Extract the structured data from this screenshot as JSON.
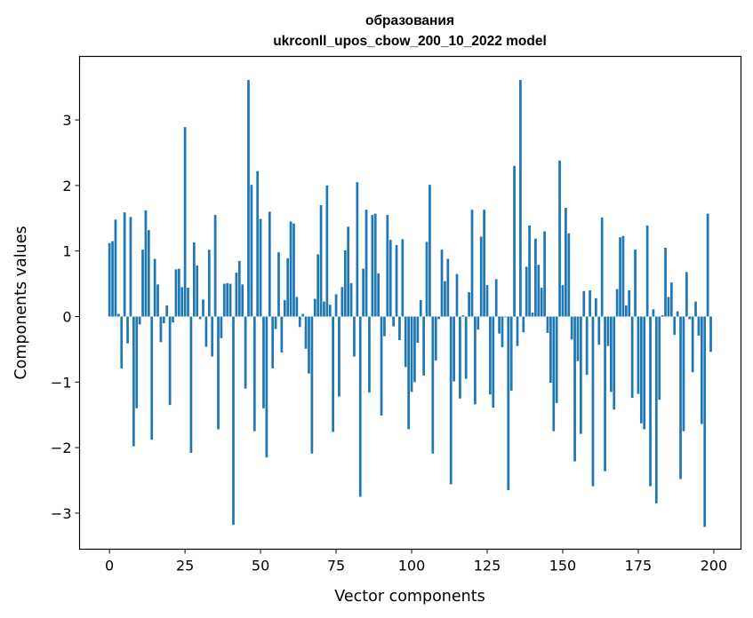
{
  "chart_data": {
    "type": "bar",
    "title_line1": "образования",
    "title_line2": "ukrconll_upos_cbow_200_10_2022 model",
    "xlabel": "Vector components",
    "ylabel": "Components values",
    "xlim": [
      -9.9,
      209
    ],
    "ylim": [
      -3.55,
      3.97
    ],
    "xticks": [
      0,
      25,
      50,
      75,
      100,
      125,
      150,
      175,
      200
    ],
    "yticks": [
      -3,
      -2,
      -1,
      0,
      1,
      2,
      3
    ],
    "bar_color": "#1f77b4",
    "grid": false,
    "values": [
      1.12,
      1.15,
      1.48,
      0.04,
      -0.79,
      1.59,
      -0.41,
      1.52,
      -1.98,
      -1.4,
      -0.12,
      1.02,
      1.62,
      1.32,
      -1.88,
      0.88,
      0.49,
      -0.39,
      -0.1,
      0.17,
      -1.35,
      -0.09,
      0.72,
      0.73,
      0.45,
      2.89,
      0.44,
      -2.08,
      1.13,
      0.78,
      -0.04,
      0.26,
      -0.46,
      1.02,
      -0.61,
      1.55,
      -1.72,
      -0.33,
      0.5,
      0.51,
      0.5,
      -3.18,
      0.67,
      0.85,
      0.49,
      -1.1,
      3.61,
      2.01,
      -1.75,
      2.22,
      1.49,
      -1.4,
      -2.15,
      1.6,
      -0.79,
      -0.19,
      0.98,
      -0.55,
      0.25,
      0.89,
      1.45,
      1.42,
      0.3,
      -0.16,
      0.04,
      -0.49,
      -0.87,
      -2.09,
      0.27,
      0.95,
      1.7,
      0.23,
      2.0,
      0.18,
      -1.76,
      0.34,
      -1.22,
      0.45,
      1.01,
      1.37,
      0.51,
      -0.61,
      2.05,
      -2.75,
      0.73,
      1.63,
      -1.16,
      1.55,
      1.57,
      0.66,
      -1.51,
      -0.3,
      1.55,
      1.17,
      -0.15,
      1.09,
      -0.36,
      1.18,
      -0.77,
      -1.72,
      -1.15,
      -1.0,
      -0.4,
      0.25,
      -0.9,
      1.14,
      2.01,
      -2.09,
      -0.67,
      -0.04,
      1.02,
      0.54,
      0.88,
      -2.56,
      -0.99,
      0.65,
      -1.25,
      0.02,
      -0.95,
      0.37,
      1.63,
      -1.34,
      -0.2,
      1.22,
      1.63,
      0.48,
      -1.19,
      -1.39,
      0.57,
      -0.26,
      -0.47,
      -0.01,
      -2.65,
      -1.13,
      2.3,
      -0.45,
      3.61,
      -0.24,
      0.76,
      1.39,
      0.06,
      1.19,
      0.79,
      0.44,
      1.3,
      -0.25,
      -1.01,
      -1.75,
      -1.32,
      2.38,
      0.48,
      1.66,
      1.27,
      -0.35,
      -2.21,
      -0.68,
      -1.79,
      0.39,
      -0.89,
      0.4,
      -2.59,
      0.28,
      -0.43,
      1.51,
      -2.36,
      -0.45,
      -1.15,
      -1.42,
      0.42,
      1.21,
      1.23,
      0.17,
      0.4,
      -1.24,
      1.02,
      -1.18,
      -1.63,
      -1.72,
      1.39,
      -2.59,
      0.11,
      -2.85,
      -1.27,
      0.02,
      1.05,
      0.3,
      0.52,
      -0.28,
      0.08,
      -2.48,
      -1.75,
      0.68,
      -0.04,
      -0.85,
      0.23,
      -0.29,
      -1.64,
      -3.21,
      1.57,
      -0.54
    ]
  }
}
